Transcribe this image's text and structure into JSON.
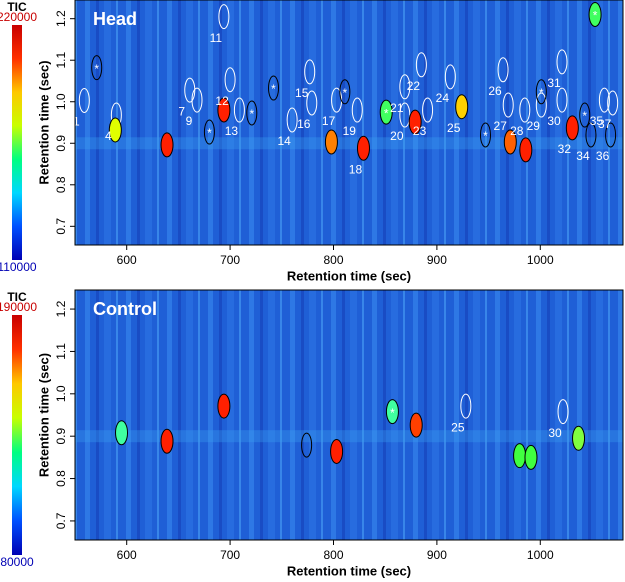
{
  "chart_data": [
    {
      "type": "heatmap",
      "title": "Head",
      "xlabel": "Retention time (sec)",
      "ylabel": "Retention time (sec)",
      "colorbar_label": "TIC",
      "colorbar_range": [
        110000,
        220000
      ],
      "colormap": [
        "#0000b4",
        "#0050ff",
        "#00d8ff",
        "#00ff80",
        "#c8ff00",
        "#ffc800",
        "#ff3000",
        "#c80000"
      ],
      "xlim": [
        550,
        1080
      ],
      "xticks": [
        600,
        700,
        800,
        900,
        1000
      ],
      "ylim": [
        0.655,
        1.245
      ],
      "yticks": [
        0.7,
        0.8,
        0.9,
        {
          "value": 1,
          "label": "1.0"
        },
        1.1,
        1.2
      ],
      "peaks": [
        {
          "label": "1",
          "x": 559,
          "y": 1.003,
          "color": "none",
          "outline": "#ffffff"
        },
        {
          "label": "4",
          "x": 590,
          "y": 0.968,
          "color": "none",
          "outline": "#ffffff"
        },
        {
          "label": "7",
          "x": 661,
          "y": 1.028,
          "color": "none",
          "outline": "#ffffff"
        },
        {
          "label": "9",
          "x": 668,
          "y": 1.004,
          "color": "none",
          "outline": "#ffffff"
        },
        {
          "label": "11",
          "x": 694,
          "y": 1.205,
          "color": "none",
          "outline": "#ffffff"
        },
        {
          "label": "12",
          "x": 700,
          "y": 1.053,
          "color": "none",
          "outline": "#ffffff"
        },
        {
          "label": "13",
          "x": 709,
          "y": 0.98,
          "color": "none",
          "outline": "#ffffff"
        },
        {
          "label": "14",
          "x": 760,
          "y": 0.956,
          "color": "none",
          "outline": "#ffffff"
        },
        {
          "label": "15",
          "x": 777,
          "y": 1.072,
          "color": "none",
          "outline": "#ffffff"
        },
        {
          "label": "16",
          "x": 779,
          "y": 0.997,
          "color": "none",
          "outline": "#ffffff"
        },
        {
          "label": "17",
          "x": 803,
          "y": 1.004,
          "color": "none",
          "outline": "#ffffff"
        },
        {
          "label": "19",
          "x": 823,
          "y": 0.98,
          "color": "none",
          "outline": "#ffffff"
        },
        {
          "label": "20",
          "x": 869,
          "y": 0.968,
          "color": "none",
          "outline": "#ffffff"
        },
        {
          "label": "21",
          "x": 869,
          "y": 1.036,
          "color": "none",
          "outline": "#ffffff"
        },
        {
          "label": "22",
          "x": 885,
          "y": 1.089,
          "color": "none",
          "outline": "#ffffff"
        },
        {
          "label": "23",
          "x": 891,
          "y": 0.98,
          "color": "none",
          "outline": "#ffffff"
        },
        {
          "label": "24",
          "x": 913,
          "y": 1.06,
          "color": "none",
          "outline": "#ffffff"
        },
        {
          "label": "26",
          "x": 964,
          "y": 1.077,
          "color": "none",
          "outline": "#ffffff"
        },
        {
          "label": "27",
          "x": 969,
          "y": 0.992,
          "color": "none",
          "outline": "#ffffff"
        },
        {
          "label": "28",
          "x": 985,
          "y": 0.98,
          "color": "none",
          "outline": "#ffffff"
        },
        {
          "label": "29",
          "x": 1001,
          "y": 0.992,
          "color": "none",
          "outline": "#ffffff"
        },
        {
          "label": "30",
          "x": 1021,
          "y": 1.004,
          "color": "none",
          "outline": "#ffffff"
        },
        {
          "label": "31",
          "x": 1021,
          "y": 1.096,
          "color": "none",
          "outline": "#ffffff"
        },
        {
          "label": "35",
          "x": 1062,
          "y": 1.004,
          "color": "none",
          "outline": "#ffffff"
        },
        {
          "label": "37",
          "x": 1070,
          "y": 0.997,
          "color": "none",
          "outline": "#ffffff"
        },
        {
          "label": "18",
          "x": 829,
          "y": 0.888,
          "color": "#ff2000",
          "outline": "#000000"
        },
        {
          "label": "25",
          "x": 924,
          "y": 0.988,
          "color": "#ffd000",
          "outline": "#000000"
        },
        {
          "label": "32",
          "x": 1031,
          "y": 0.937,
          "color": "#ff2000",
          "outline": "#000000"
        },
        {
          "label": "34",
          "x": 1049,
          "y": 0.92,
          "color": "none",
          "outline": "#000000"
        },
        {
          "label": "36",
          "x": 1068,
          "y": 0.92,
          "color": "none",
          "outline": "#000000"
        },
        {
          "label": "*",
          "x": 571,
          "y": 1.082,
          "color": "none",
          "outline": "#000000"
        },
        {
          "label": "*",
          "x": 680,
          "y": 0.927,
          "color": "none",
          "outline": "#000000"
        },
        {
          "label": "*",
          "x": 721,
          "y": 0.973,
          "color": "none",
          "outline": "#000000"
        },
        {
          "label": "*",
          "x": 742,
          "y": 1.033,
          "color": "none",
          "outline": "#000000"
        },
        {
          "label": "*",
          "x": 811,
          "y": 1.024,
          "color": "none",
          "outline": "#000000"
        },
        {
          "label": "*",
          "x": 851,
          "y": 0.975,
          "color": "#40ff60",
          "outline": "#000000"
        },
        {
          "label": "*",
          "x": 947,
          "y": 0.92,
          "color": "none",
          "outline": "#000000"
        },
        {
          "label": "*",
          "x": 1001,
          "y": 1.024,
          "color": "none",
          "outline": "#000000"
        },
        {
          "label": "*",
          "x": 1043,
          "y": 0.968,
          "color": "none",
          "outline": "#000000"
        },
        {
          "label": "*",
          "x": 1053,
          "y": 1.21,
          "color": "#40ff60",
          "outline": "#000000"
        },
        {
          "x": 639,
          "y": 0.896,
          "color": "#ff2000",
          "outline": "#000000"
        },
        {
          "x": 694,
          "y": 0.98,
          "color": "#ff2000",
          "outline": "#000000"
        },
        {
          "x": 589,
          "y": 0.932,
          "color": "#e0ff00",
          "outline": "#000000"
        },
        {
          "x": 798,
          "y": 0.903,
          "color": "#ff8000",
          "outline": "#000000"
        },
        {
          "x": 879,
          "y": 0.951,
          "color": "#ff2000",
          "outline": "#000000"
        },
        {
          "x": 971,
          "y": 0.903,
          "color": "#ff6000",
          "outline": "#000000"
        },
        {
          "x": 986,
          "y": 0.884,
          "color": "#ff2000",
          "outline": "#000000"
        }
      ]
    },
    {
      "type": "heatmap",
      "title": "Control",
      "xlabel": "Retention time (sec)",
      "ylabel": "Retention time (sec)",
      "colorbar_label": "TIC",
      "colorbar_range": [
        80000,
        190000
      ],
      "colormap": [
        "#0000b4",
        "#0050ff",
        "#00d8ff",
        "#00ff80",
        "#c8ff00",
        "#ffc800",
        "#ff3000",
        "#c80000"
      ],
      "xlim": [
        550,
        1080
      ],
      "xticks": [
        600,
        700,
        800,
        900,
        1000
      ],
      "ylim": [
        0.655,
        1.245
      ],
      "yticks": [
        0.7,
        0.8,
        0.9,
        {
          "value": 1,
          "label": "1.0"
        },
        1.1,
        1.2
      ],
      "peaks": [
        {
          "x": 595,
          "y": 0.908,
          "color": "#40ffa0",
          "outline": "#000000"
        },
        {
          "x": 639,
          "y": 0.888,
          "color": "#ff2000",
          "outline": "#000000"
        },
        {
          "x": 694,
          "y": 0.971,
          "color": "#ff2000",
          "outline": "#000000"
        },
        {
          "x": 774,
          "y": 0.879,
          "color": "none",
          "outline": "#000000"
        },
        {
          "x": 803,
          "y": 0.864,
          "color": "#ff2000",
          "outline": "#000000"
        },
        {
          "label": "*",
          "x": 857,
          "y": 0.958,
          "color": "#40ffa0",
          "outline": "#000000"
        },
        {
          "x": 880,
          "y": 0.926,
          "color": "#ff4000",
          "outline": "#000000"
        },
        {
          "label": "25",
          "x": 928,
          "y": 0.971,
          "color": "none",
          "outline": "#ffffff"
        },
        {
          "x": 980,
          "y": 0.854,
          "color": "#40ff40",
          "outline": "#000000"
        },
        {
          "x": 991,
          "y": 0.85,
          "color": "#40ff40",
          "outline": "#000000"
        },
        {
          "label": "30",
          "x": 1022,
          "y": 0.958,
          "color": "none",
          "outline": "#ffffff"
        },
        {
          "x": 1037,
          "y": 0.895,
          "color": "#80ff40",
          "outline": "#000000"
        }
      ]
    }
  ]
}
